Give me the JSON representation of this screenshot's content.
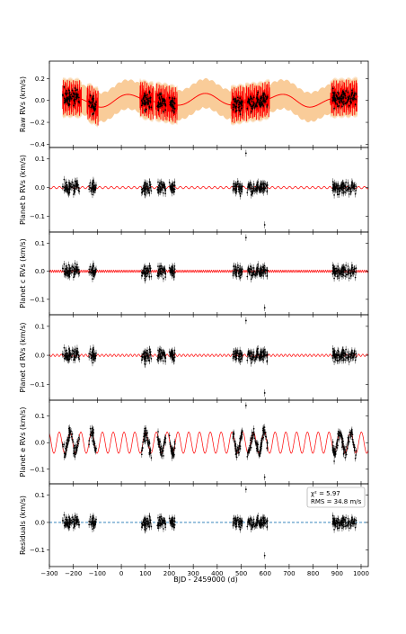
{
  "chart_data": {
    "type": "scatter",
    "x_axis": {
      "label": "BJD - 2459000 (d)",
      "lim": [
        -300,
        1030
      ],
      "ticks": [
        -300,
        -200,
        -100,
        0,
        100,
        200,
        300,
        400,
        500,
        600,
        700,
        800,
        900,
        1000
      ],
      "tick_labels": [
        "−300",
        "−200",
        "−100",
        "0",
        "100",
        "200",
        "300",
        "400",
        "500",
        "600",
        "700",
        "800",
        "900",
        "1000"
      ]
    },
    "observation_seasons": [
      {
        "start": -245,
        "end": -175
      },
      {
        "start": -135,
        "end": -105
      },
      {
        "start": 85,
        "end": 125
      },
      {
        "start": 150,
        "end": 185
      },
      {
        "start": 200,
        "end": 225
      },
      {
        "start": 465,
        "end": 505
      },
      {
        "start": 525,
        "end": 610
      },
      {
        "start": 880,
        "end": 980
      }
    ],
    "panels": [
      {
        "id": "raw",
        "ylabel": "Raw RVs (km/s)",
        "ylim": [
          -0.43,
          0.36
        ],
        "yticks": [
          0.2,
          0.0,
          -0.2,
          -0.4
        ],
        "ytick_labels": [
          "0.2",
          "0.0",
          "−0.2",
          "−0.4"
        ],
        "point_amplitude": 0.11,
        "model": {
          "name": "full model",
          "color": "#ff0000",
          "band_color": "#f8c68e",
          "band_halfwidth": 0.12,
          "components": [
            {
              "amplitude": 0.045,
              "period": 300,
              "phase": 0.5
            },
            {
              "amplitude": 0.02,
              "period": 170,
              "phase": 1.2
            }
          ],
          "season_jitter": 0.17
        }
      },
      {
        "id": "planet-b",
        "ylabel": "Planet b RVs (km/s)",
        "ylim": [
          -0.155,
          0.14
        ],
        "yticks": [
          0.1,
          0.0,
          -0.1
        ],
        "ytick_labels": [
          "0.1",
          "0.0",
          "−0.1"
        ],
        "point_amplitude": 0.03,
        "model": {
          "name": "planet b",
          "color": "#ff0000",
          "amplitude": 0.004,
          "period": 24.0
        }
      },
      {
        "id": "planet-c",
        "ylabel": "Planet c RVs (km/s)",
        "ylim": [
          -0.155,
          0.14
        ],
        "yticks": [
          0.1,
          0.0,
          -0.1
        ],
        "ytick_labels": [
          "0.1",
          "0.0",
          "−0.1"
        ],
        "point_amplitude": 0.03,
        "model": {
          "name": "planet c",
          "color": "#ff0000",
          "amplitude": 0.004,
          "period": 8.5
        }
      },
      {
        "id": "planet-d",
        "ylabel": "Planet d RVs (km/s)",
        "ylim": [
          -0.155,
          0.14
        ],
        "yticks": [
          0.1,
          0.0,
          -0.1
        ],
        "ytick_labels": [
          "0.1",
          "0.0",
          "−0.1"
        ],
        "point_amplitude": 0.03,
        "model": {
          "name": "planet d",
          "color": "#ff0000",
          "amplitude": 0.004,
          "period": 17.0
        }
      },
      {
        "id": "planet-e",
        "ylabel": "Planet e RVs (km/s)",
        "ylim": [
          -0.155,
          0.16
        ],
        "yticks": [
          0.1,
          0.0,
          -0.1
        ],
        "ytick_labels": [
          "0.1",
          "0.0",
          "−0.1"
        ],
        "point_amplitude": 0.035,
        "model": {
          "name": "planet e",
          "color": "#ff0000",
          "amplitude": 0.04,
          "period": 45.0
        }
      },
      {
        "id": "residuals",
        "ylabel": "Residuals (km/s)",
        "ylim": [
          -0.16,
          0.14
        ],
        "yticks": [
          0.1,
          0.0,
          -0.1
        ],
        "ytick_labels": [
          "0.1",
          "0.0",
          "−0.1"
        ],
        "point_amplitude": 0.03,
        "zero_line": {
          "value": 0.0,
          "color": "#1f77b4",
          "style": "dashed"
        },
        "annotation": {
          "chi2": "χ² = 5.97",
          "rms": "RMS = 34.8 m/s"
        }
      }
    ],
    "notable_points": [
      {
        "panel": "planet-b",
        "x": 520,
        "y": 0.12
      },
      {
        "panel": "planet-b",
        "x": 598,
        "y": -0.13
      },
      {
        "panel": "planet-c",
        "x": 520,
        "y": 0.12
      },
      {
        "panel": "planet-c",
        "x": 598,
        "y": -0.13
      },
      {
        "panel": "planet-d",
        "x": 520,
        "y": 0.12
      },
      {
        "panel": "planet-d",
        "x": 598,
        "y": -0.13
      },
      {
        "panel": "planet-e",
        "x": 520,
        "y": 0.14
      },
      {
        "panel": "planet-e",
        "x": 598,
        "y": -0.13
      },
      {
        "panel": "residuals",
        "x": 520,
        "y": 0.12
      },
      {
        "panel": "residuals",
        "x": 598,
        "y": -0.12
      }
    ],
    "colors": {
      "points": "#000000",
      "model": "#ff0000",
      "band": "#f8c68e",
      "zero_line": "#1f77b4"
    }
  }
}
